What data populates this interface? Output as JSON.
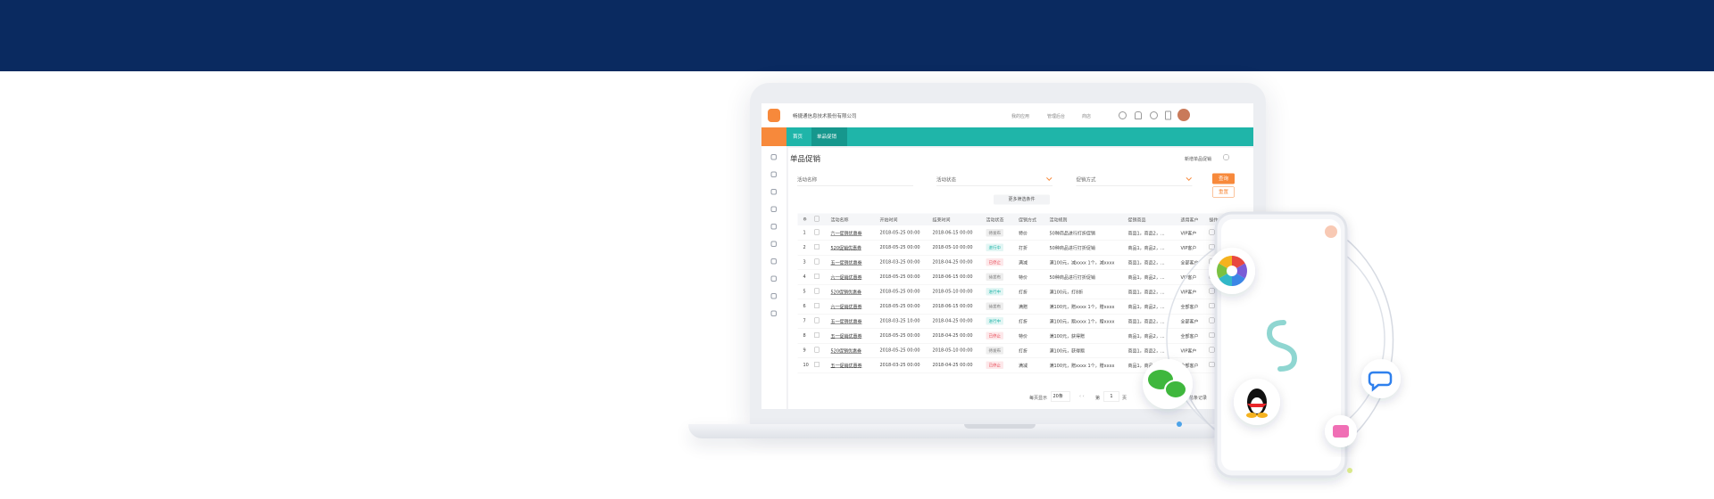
{
  "brand": {
    "company": "畅捷通信息技术股份有限公司"
  },
  "topbar": {
    "links": [
      "我的应用",
      "管理后台",
      "商店"
    ]
  },
  "tabs": [
    "首页",
    "单品促销"
  ],
  "page": {
    "title": "单品促销",
    "add_button": "新增单品促销"
  },
  "filters": {
    "fields": [
      "活动名称",
      "活动状态",
      "促销方式"
    ],
    "search": "查询",
    "reset": "重置",
    "more": "更多筛选条件"
  },
  "table": {
    "headers": [
      "活动名称",
      "开始时间",
      "结束时间",
      "活动状态",
      "促销方式",
      "活动规则",
      "促销商品",
      "适用客户",
      "操作"
    ],
    "status_styles": [
      {
        "label": "待发布",
        "color": "#777",
        "bg": "#eeeeee"
      },
      {
        "label": "进行中",
        "color": "#1fb5a9",
        "bg": "#e3f6f4"
      },
      {
        "label": "已停止",
        "color": "#e8505b",
        "bg": "#fde8ea"
      }
    ],
    "rows": [
      [
        "1",
        "六一促销优惠券",
        "2018-05-25 00:00",
        "2018-06-15 00:00",
        "待发布",
        "特价",
        "50种商品进行打折促销",
        "商品1，商品2，...",
        "VIP客户"
      ],
      [
        "2",
        "520促销优惠券",
        "2018-05-25 00:00",
        "2018-05-10 00:00",
        "进行中",
        "打折",
        "50种商品进行打折促销",
        "商品1，商品2，...",
        "VIP客户"
      ],
      [
        "3",
        "五一促销优惠券",
        "2018-03-25 00:00",
        "2018-04-25 00:00",
        "已停止",
        "满减",
        "满100元，减xxxx 1个，减xxxx",
        "商品1，商品2，...",
        "全部客户"
      ],
      [
        "4",
        "六一促销优惠券",
        "2018-05-25 00:00",
        "2018-06-15 00:00",
        "待发布",
        "特价",
        "50种商品进行打折促销",
        "商品1，商品2，...",
        "VIP客户"
      ],
      [
        "5",
        "520促销优惠券",
        "2018-05-25 00:00",
        "2018-05-10 00:00",
        "进行中",
        "打折",
        "满100元，打8折",
        "商品1，商品2，...",
        "VIP客户"
      ],
      [
        "6",
        "六一促销优惠券",
        "2018-05-25 00:00",
        "2018-06-15 00:00",
        "待发布",
        "满赠",
        "满100元，赠xxxx 1个，赠xxxx",
        "商品1，商品2，...",
        "全部客户"
      ],
      [
        "7",
        "五一促销优惠券",
        "2018-03-25 10:00",
        "2018-04-25 00:00",
        "进行中",
        "打折",
        "满100元，赠xxxx 1个，赠xxxx",
        "商品1，商品2，...",
        "全部客户"
      ],
      [
        "8",
        "五一促销优惠券",
        "2018-05-25 00:00",
        "2018-04-25 00:00",
        "已停止",
        "特价",
        "满100元，获得赠",
        "商品1，商品2，...",
        "全部客户"
      ],
      [
        "9",
        "520促销优惠券",
        "2018-05-25 00:00",
        "2018-05-10 00:00",
        "待发布",
        "打折",
        "满100元，获得赠",
        "商品1，商品2，...",
        "VIP客户"
      ],
      [
        "10",
        "五一促销优惠券",
        "2018-03-25 00:00",
        "2018-04-25 00:00",
        "已停止",
        "满减",
        "满100元，赠xxxx 1个，赠xxxx",
        "商品1，商品2，...",
        "全部客户"
      ]
    ]
  },
  "pagination": {
    "per_page_label": "每页显示",
    "per_page": "20条",
    "page_prefix": "第",
    "page": "1",
    "page_suffix": "页",
    "total": "总条记录"
  }
}
